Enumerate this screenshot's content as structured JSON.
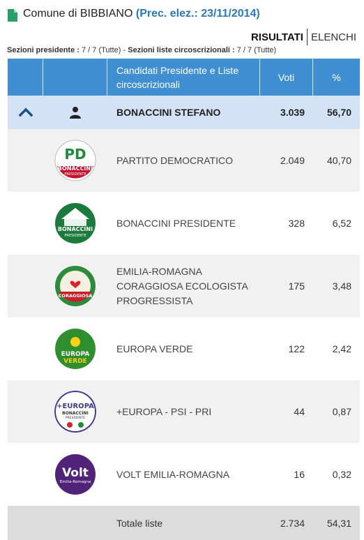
{
  "header": {
    "comune": "Comune di BIBBIANO",
    "prec": "(Prec. elez.: 23/11/2014)"
  },
  "tabs": {
    "active": "RISULTATI",
    "inactive": "ELENCHI"
  },
  "sezioni": {
    "pres_label": "Sezioni presidente :",
    "pres_value": "7 / 7 (Tutte)",
    "dash": "-",
    "liste_label": "Sezioni liste circoscrizionali :",
    "liste_value": "7 / 7 (Tutte)"
  },
  "table": {
    "columns": {
      "candidati": "Candidati Presidente e Liste circoscrizionali",
      "voti": "Voti",
      "perc": "%"
    },
    "candidate": {
      "name": "BONACCINI STEFANO",
      "voti": "3.039",
      "perc": "56,70"
    },
    "lists": [
      {
        "name": "PARTITO DEMOCRATICO",
        "voti": "2.049",
        "perc": "40,70",
        "logo_lines": [
          "PD",
          "BONACCINI",
          "PRESIDENTE"
        ]
      },
      {
        "name": "BONACCINI PRESIDENTE",
        "voti": "328",
        "perc": "6,52",
        "logo_lines": [
          "BONACCINI",
          "PRESIDENTE"
        ]
      },
      {
        "name": "EMILIA-ROMAGNA CORAGGIOSA ECOLOGISTA PROGRESSISTA",
        "voti": "175",
        "perc": "3,48",
        "logo_lines": [
          "CORAGGIOSA"
        ]
      },
      {
        "name": "EUROPA VERDE",
        "voti": "122",
        "perc": "2,42",
        "logo_lines": [
          "EUROPA",
          "VERDE"
        ]
      },
      {
        "name": "+EUROPA - PSI - PRI",
        "voti": "44",
        "perc": "0,87",
        "logo_lines": [
          "+EUROPA",
          "BONACCINI",
          "PRESIDENTE"
        ]
      },
      {
        "name": "VOLT EMILIA-ROMAGNA",
        "voti": "16",
        "perc": "0,32",
        "logo_lines": [
          "Volt",
          "Emilia-Romagna"
        ]
      }
    ],
    "totale": {
      "label": "Totale liste",
      "voti": "2.734",
      "perc": "54,31"
    }
  },
  "icons": {
    "doc": "document-icon",
    "collapse": "chevron-up-icon",
    "person": "person-icon"
  },
  "colors": {
    "header_bg": "#3f8fd2",
    "candidate_bg": "#d3e3f5",
    "link": "#2a79b4",
    "total_bg": "#dcdcdc"
  }
}
